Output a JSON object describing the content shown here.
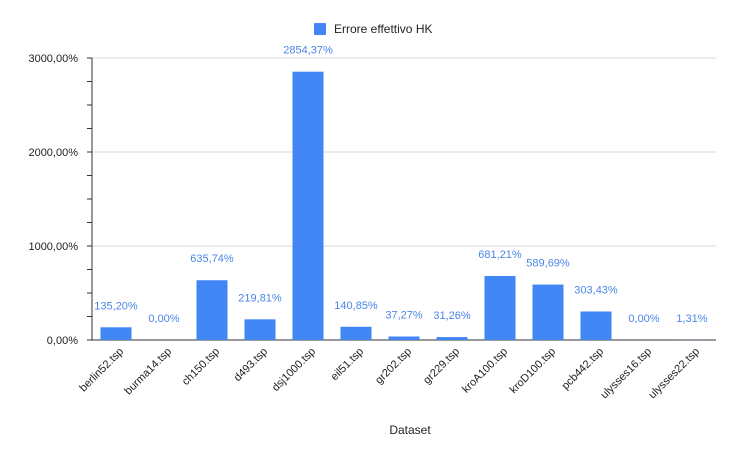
{
  "chart_data": {
    "type": "bar",
    "title": "",
    "xlabel": "Dataset",
    "ylabel": "",
    "ylim": [
      0,
      3000
    ],
    "yticks": [
      {
        "value": 0,
        "label": "0,00%"
      },
      {
        "value": 1000,
        "label": "1000,00%"
      },
      {
        "value": 2000,
        "label": "2000,00%"
      },
      {
        "value": 3000,
        "label": "3000,00%"
      }
    ],
    "minor_tick_step": 250,
    "grid": true,
    "legend_position": "top-center",
    "series": [
      {
        "name": "Errore effettivo HK",
        "color": "#4285f4",
        "values": [
          135.2,
          0.0,
          635.74,
          219.81,
          2854.37,
          140.85,
          37.27,
          31.26,
          681.21,
          589.69,
          303.43,
          0.0,
          1.31
        ],
        "value_labels": [
          "135,20%",
          "0,00%",
          "635,74%",
          "219,81%",
          "2854,37%",
          "140,85%",
          "37,27%",
          "31,26%",
          "681,21%",
          "589,69%",
          "303,43%",
          "0,00%",
          "1,31%"
        ]
      }
    ],
    "categories": [
      "berlin52.tsp",
      "burma14.tsp",
      "ch150.tsp",
      "d493.tsp",
      "dsj1000.tsp",
      "eil51.tsp",
      "gr202.tsp",
      "gr229.tsp",
      "kroA100.tsp",
      "kroD100.tsp",
      "pcb442.tsp",
      "ulysses16.tsp",
      "ulysses22.tsp"
    ]
  }
}
